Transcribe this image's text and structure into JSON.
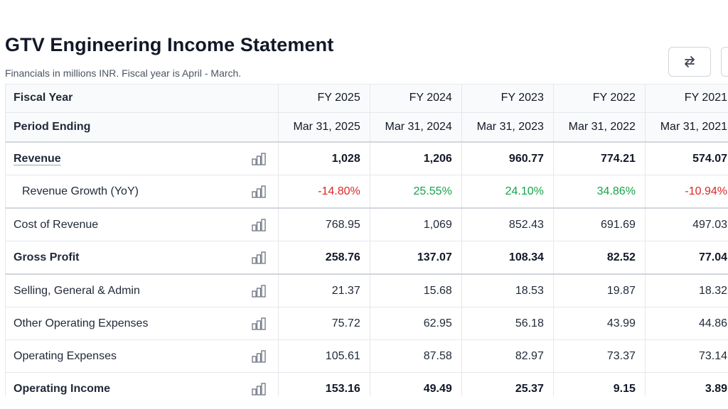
{
  "header": {
    "title": "GTV Engineering Income Statement",
    "subtitle": "Financials in millions INR. Fiscal year is April - March."
  },
  "controls": {
    "swap_icon": "swap-arrows-icon"
  },
  "table": {
    "header_rows": [
      {
        "label": "Fiscal Year",
        "values": [
          "FY 2025",
          "FY 2024",
          "FY 2023",
          "FY 2022",
          "FY 2021"
        ]
      },
      {
        "label": "Period Ending",
        "values": [
          "Mar 31, 2025",
          "Mar 31, 2024",
          "Mar 31, 2023",
          "Mar 31, 2022",
          "Mar 31, 2021"
        ]
      }
    ],
    "rows": [
      {
        "label": "Revenue",
        "values": [
          "1,028",
          "1,206",
          "960.77",
          "774.21",
          "574.07"
        ],
        "style": "bold-link"
      },
      {
        "label": "Revenue Growth (YoY)",
        "values": [
          "-14.80%",
          "25.55%",
          "24.10%",
          "34.86%",
          "-10.94%"
        ],
        "style": "growth"
      },
      {
        "label": "Cost of Revenue",
        "values": [
          "768.95",
          "1,069",
          "852.43",
          "691.69",
          "497.03"
        ],
        "style": "normal"
      },
      {
        "label": "Gross Profit",
        "values": [
          "258.76",
          "137.07",
          "108.34",
          "82.52",
          "77.04"
        ],
        "style": "bold"
      },
      {
        "label": "Selling, General & Admin",
        "values": [
          "21.37",
          "15.68",
          "18.53",
          "19.87",
          "18.32"
        ],
        "style": "normal"
      },
      {
        "label": "Other Operating Expenses",
        "values": [
          "75.72",
          "62.95",
          "56.18",
          "43.99",
          "44.86"
        ],
        "style": "normal"
      },
      {
        "label": "Operating Expenses",
        "values": [
          "105.61",
          "87.58",
          "82.97",
          "73.37",
          "73.14"
        ],
        "style": "normal"
      },
      {
        "label": "Operating Income",
        "values": [
          "153.16",
          "49.49",
          "25.37",
          "9.15",
          "3.89"
        ],
        "style": "bold"
      }
    ],
    "row_icon": "bar-chart-icon"
  },
  "colors": {
    "negative": "#dc2626",
    "positive": "#16a34a",
    "header_bg": "#f9fafb",
    "border": "#e5e7eb"
  }
}
